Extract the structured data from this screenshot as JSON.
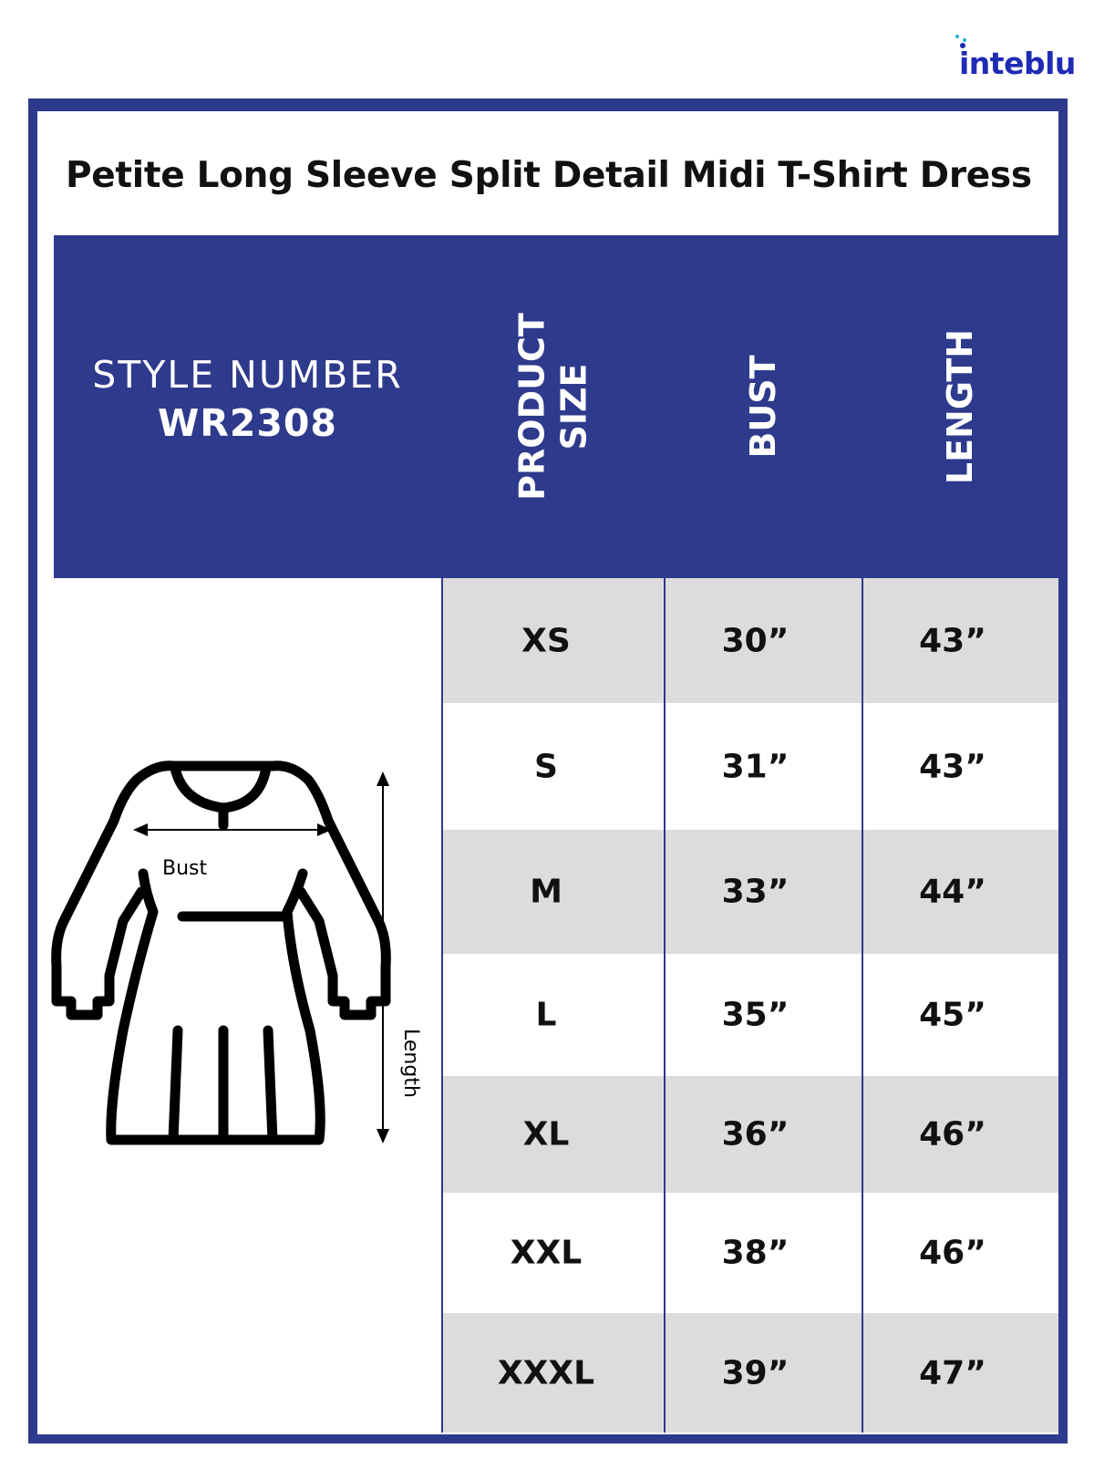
{
  "brand": {
    "logo_text": "inteblu",
    "colors": {
      "primary": "#2e3a8c",
      "logo": "#1f2bb5",
      "row_alt": "#dcdcdc"
    }
  },
  "title": "Petite Long Sleeve Split Detail Midi T-Shirt Dress",
  "style": {
    "label": "STYLE NUMBER",
    "number": "WR2308"
  },
  "columns": [
    {
      "line1": "PRODUCT",
      "line2": "SIZE"
    },
    {
      "line1": "BUST"
    },
    {
      "line1": "LENGTH"
    }
  ],
  "rows": [
    {
      "size": "XS",
      "bust": "30”",
      "length": "43”"
    },
    {
      "size": "S",
      "bust": "31”",
      "length": "43”"
    },
    {
      "size": "M",
      "bust": "33”",
      "length": "44”"
    },
    {
      "size": "L",
      "bust": "35”",
      "length": "45”"
    },
    {
      "size": "XL",
      "bust": "36”",
      "length": "46”"
    },
    {
      "size": "XXL",
      "bust": "38”",
      "length": "46”"
    },
    {
      "size": "XXXL",
      "bust": "39”",
      "length": "47”"
    }
  ],
  "diagram": {
    "bust_label": "Bust",
    "length_label": "Length",
    "icon": "dress-outline-icon"
  }
}
